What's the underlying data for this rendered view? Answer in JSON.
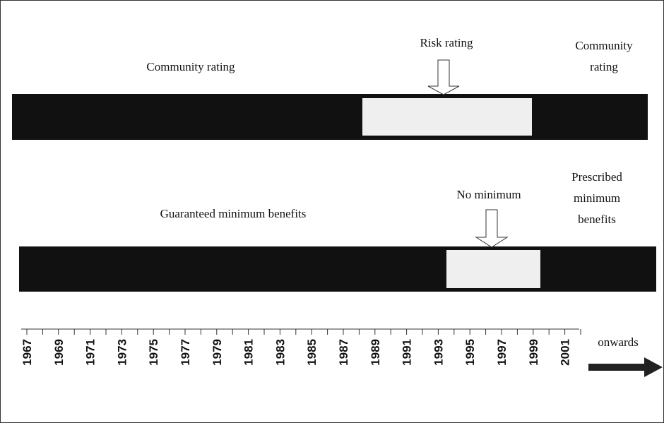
{
  "rows": [
    {
      "left_label": "Community rating",
      "arrow_label": "Risk rating",
      "right_label": [
        "Community",
        "rating"
      ]
    },
    {
      "left_label": "Guaranteed minimum benefits",
      "arrow_label": "No minimum",
      "right_label": [
        "Prescribed",
        "minimum",
        "benefits"
      ]
    }
  ],
  "timeline": {
    "labels": [
      "1967",
      "1969",
      "1971",
      "1973",
      "1975",
      "1977",
      "1979",
      "1981",
      "1983",
      "1985",
      "1987",
      "1989",
      "1991",
      "1993",
      "1995",
      "1997",
      "1999",
      "2001"
    ],
    "end_label": "onwards"
  }
}
